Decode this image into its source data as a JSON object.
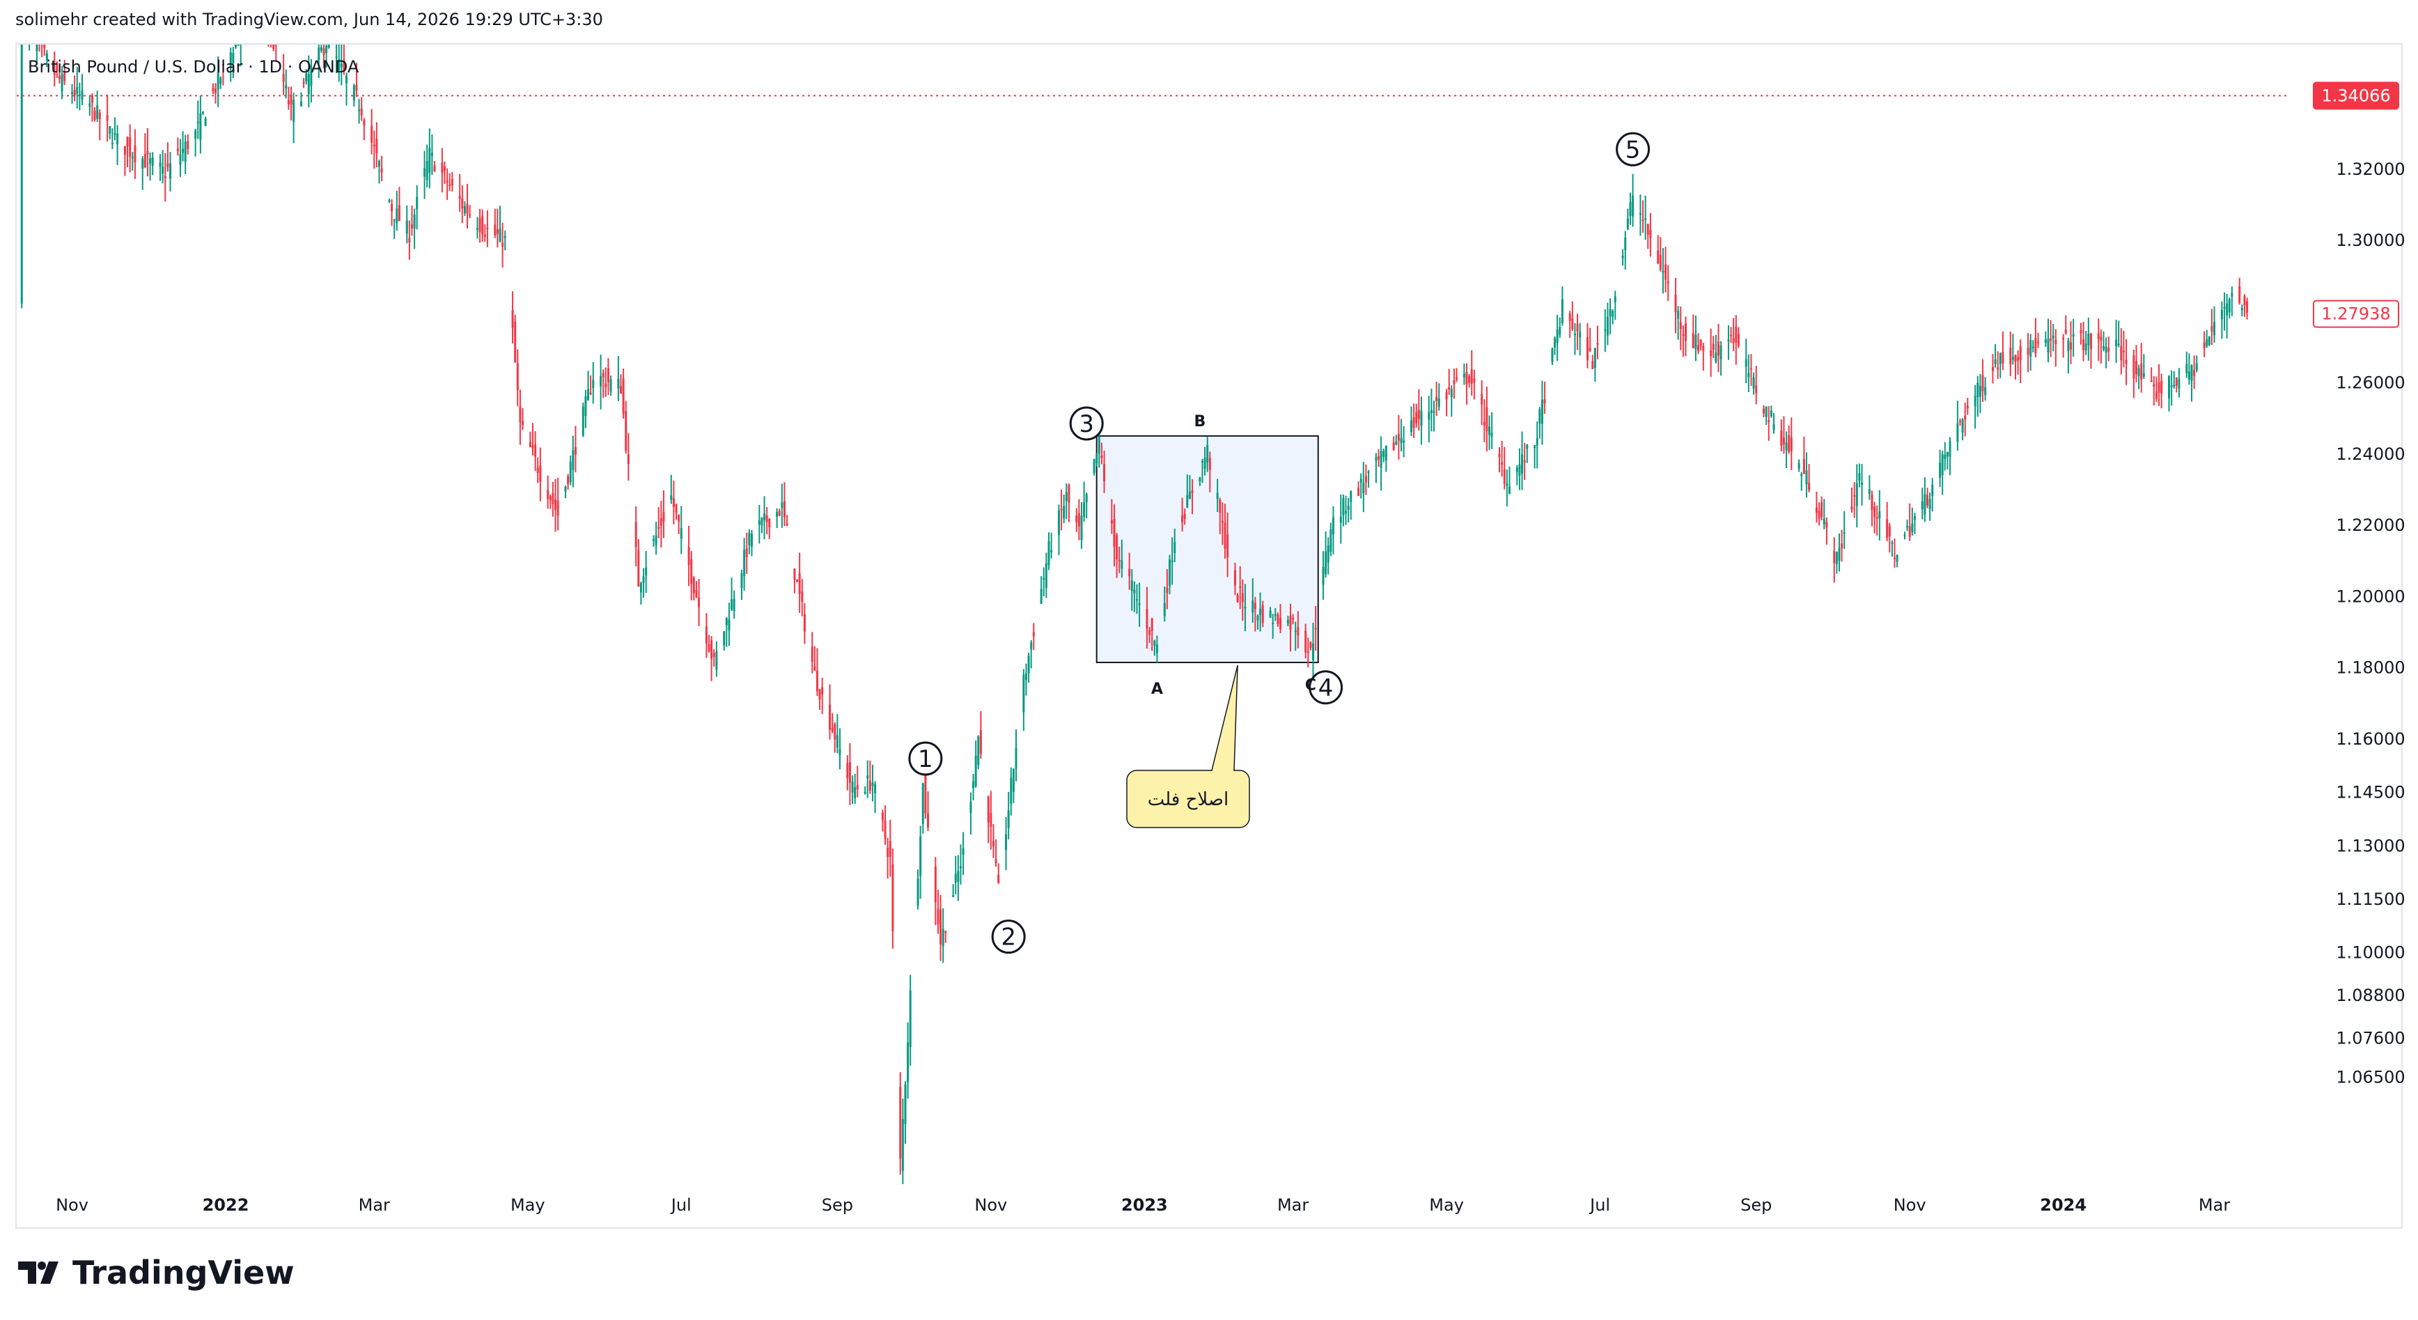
{
  "header": {
    "attribution": "solimehr created with TradingView.com, Jun 14, 2026 19:29 UTC+3:30"
  },
  "brand": {
    "name": "TradingView"
  },
  "colors": {
    "up": "#089981",
    "down": "#f23645",
    "price_line": "#f23645",
    "box_fill": "#eef4fd",
    "callout_fill": "#fdf2a9",
    "text": "#131722",
    "axis_text": "#131722",
    "border": "#e0e3eb"
  },
  "chart_data": {
    "type": "candlestick",
    "symbol_label": "British Pound / U.S. Dollar · 1D · OANDA",
    "interval": "1D",
    "x_range": [
      "2021-10-10",
      "2024-03-31"
    ],
    "ylim": [
      1.035,
      1.355
    ],
    "y_ticks": [
      "1.32000",
      "1.30000",
      "1.26000",
      "1.24000",
      "1.22000",
      "1.20000",
      "1.18000",
      "1.16000",
      "1.14500",
      "1.13000",
      "1.11500",
      "1.10000",
      "1.08800",
      "1.07600",
      "1.06500"
    ],
    "x_ticks": [
      {
        "label": "Nov",
        "date": "2021-11-01",
        "bold": false
      },
      {
        "label": "2022",
        "date": "2022-01-01",
        "bold": true
      },
      {
        "label": "Mar",
        "date": "2022-03-01",
        "bold": false
      },
      {
        "label": "May",
        "date": "2022-05-01",
        "bold": false
      },
      {
        "label": "Jul",
        "date": "2022-07-01",
        "bold": false
      },
      {
        "label": "Sep",
        "date": "2022-09-01",
        "bold": false
      },
      {
        "label": "Nov",
        "date": "2022-11-01",
        "bold": false
      },
      {
        "label": "2023",
        "date": "2023-01-01",
        "bold": true
      },
      {
        "label": "Mar",
        "date": "2023-03-01",
        "bold": false
      },
      {
        "label": "May",
        "date": "2023-05-01",
        "bold": false
      },
      {
        "label": "Jul",
        "date": "2023-07-01",
        "bold": false
      },
      {
        "label": "Sep",
        "date": "2023-09-01",
        "bold": false
      },
      {
        "label": "Nov",
        "date": "2023-11-01",
        "bold": false
      },
      {
        "label": "2024",
        "date": "2024-01-01",
        "bold": true
      },
      {
        "label": "Mar",
        "date": "2024-03-01",
        "bold": false
      }
    ],
    "price_path": [
      [
        "2021-10-12",
        1.362
      ],
      [
        "2021-10-27",
        1.345
      ],
      [
        "2021-11-08",
        1.338
      ],
      [
        "2021-11-20",
        1.327
      ],
      [
        "2021-12-08",
        1.319
      ],
      [
        "2021-12-20",
        1.33
      ],
      [
        "2022-01-05",
        1.356
      ],
      [
        "2022-01-14",
        1.372
      ],
      [
        "2022-01-27",
        1.336
      ],
      [
        "2022-02-10",
        1.356
      ],
      [
        "2022-02-24",
        1.337
      ],
      [
        "2022-03-08",
        1.309
      ],
      [
        "2022-03-15",
        1.302
      ],
      [
        "2022-03-23",
        1.324
      ],
      [
        "2022-04-05",
        1.31
      ],
      [
        "2022-04-14",
        1.303
      ],
      [
        "2022-04-22",
        1.3
      ],
      [
        "2022-04-28",
        1.248
      ],
      [
        "2022-05-13",
        1.223
      ],
      [
        "2022-05-27",
        1.262
      ],
      [
        "2022-06-07",
        1.259
      ],
      [
        "2022-06-14",
        1.204
      ],
      [
        "2022-06-27",
        1.228
      ],
      [
        "2022-07-14",
        1.181
      ],
      [
        "2022-07-29",
        1.218
      ],
      [
        "2022-08-10",
        1.225
      ],
      [
        "2022-08-23",
        1.178
      ],
      [
        "2022-09-07",
        1.146
      ],
      [
        "2022-09-15",
        1.148
      ],
      [
        "2022-09-22",
        1.126
      ],
      [
        "2022-09-26",
        1.041
      ],
      [
        "2022-10-05",
        1.147
      ],
      [
        "2022-10-12",
        1.103
      ],
      [
        "2022-10-21",
        1.128
      ],
      [
        "2022-10-27",
        1.161
      ],
      [
        "2022-11-04",
        1.117
      ],
      [
        "2022-11-14",
        1.176
      ],
      [
        "2022-11-24",
        1.213
      ],
      [
        "2022-12-01",
        1.228
      ],
      [
        "2022-12-06",
        1.218
      ],
      [
        "2022-12-14",
        1.243
      ],
      [
        "2022-12-20",
        1.214
      ],
      [
        "2023-01-06",
        1.186
      ],
      [
        "2023-01-13",
        1.217
      ],
      [
        "2023-01-26",
        1.241
      ],
      [
        "2023-02-06",
        1.201
      ],
      [
        "2023-02-17",
        1.195
      ],
      [
        "2023-03-02",
        1.192
      ],
      [
        "2023-03-08",
        1.184
      ],
      [
        "2023-03-16",
        1.22
      ],
      [
        "2023-03-24",
        1.228
      ],
      [
        "2023-04-14",
        1.246
      ],
      [
        "2023-04-28",
        1.255
      ],
      [
        "2023-05-10",
        1.262
      ],
      [
        "2023-05-25",
        1.232
      ],
      [
        "2023-06-05",
        1.243
      ],
      [
        "2023-06-16",
        1.281
      ],
      [
        "2023-06-28",
        1.266
      ],
      [
        "2023-07-07",
        1.285
      ],
      [
        "2023-07-14",
        1.313
      ],
      [
        "2023-07-26",
        1.291
      ],
      [
        "2023-08-04",
        1.273
      ],
      [
        "2023-08-15",
        1.268
      ],
      [
        "2023-08-22",
        1.274
      ],
      [
        "2023-09-05",
        1.252
      ],
      [
        "2023-09-22",
        1.232
      ],
      [
        "2023-10-03",
        1.21
      ],
      [
        "2023-10-12",
        1.234
      ],
      [
        "2023-10-26",
        1.212
      ],
      [
        "2023-11-08",
        1.228
      ],
      [
        "2023-11-21",
        1.249
      ],
      [
        "2023-12-05",
        1.266
      ],
      [
        "2023-12-20",
        1.27
      ],
      [
        "2024-01-05",
        1.272
      ],
      [
        "2024-01-22",
        1.27
      ],
      [
        "2024-02-06",
        1.257
      ],
      [
        "2024-02-22",
        1.264
      ],
      [
        "2024-03-08",
        1.286
      ],
      [
        "2024-03-14",
        1.27938
      ]
    ],
    "current_price_label": "1.27938",
    "highlight_price_label": "1.34066",
    "highlight_price": 1.34066,
    "annotations": {
      "waves": [
        {
          "label": "1",
          "date": "2022-10-06",
          "price": 1.1545
        },
        {
          "label": "2",
          "date": "2022-11-08",
          "price": 1.1045
        },
        {
          "label": "3",
          "date": "2022-12-09",
          "price": 1.2486
        },
        {
          "label": "4",
          "date": "2023-03-14",
          "price": 1.1745
        },
        {
          "label": "5",
          "date": "2023-07-14",
          "price": 1.3256
        }
      ],
      "abc": [
        {
          "label": "A",
          "date": "2023-01-06",
          "price": 1.1745
        },
        {
          "label": "B",
          "date": "2023-01-23",
          "price": 1.2496
        },
        {
          "label": "C",
          "date": "2023-03-08",
          "price": 1.1755
        }
      ],
      "box": {
        "date_from": "2022-12-13",
        "date_to": "2023-03-11",
        "price_low": 1.1815,
        "price_high": 1.2451
      },
      "callout_text": "اصلاح فلت"
    }
  }
}
